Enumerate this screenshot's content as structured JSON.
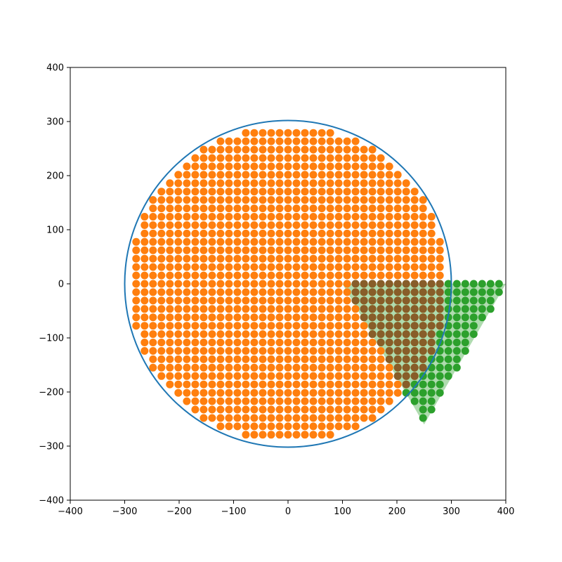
{
  "chart_data": {
    "type": "scatter",
    "title": "",
    "xlabel": "",
    "ylabel": "",
    "xlim": [
      -400,
      400
    ],
    "ylim": [
      -400,
      400
    ],
    "grid": false,
    "xticks": [
      -400,
      -300,
      -200,
      -100,
      0,
      100,
      200,
      300,
      400
    ],
    "yticks": [
      -400,
      -300,
      -200,
      -100,
      0,
      100,
      200,
      300,
      400
    ],
    "xtick_labels": [
      "−400",
      "−300",
      "−200",
      "−100",
      "0",
      "100",
      "200",
      "300",
      "400"
    ],
    "ytick_labels": [
      "−400",
      "−300",
      "−200",
      "−100",
      "0",
      "100",
      "200",
      "300",
      "400"
    ],
    "grid_step": 15.5,
    "circle": {
      "center": [
        0,
        0
      ],
      "radius": 300,
      "color": "#1f77b4"
    },
    "triangle": {
      "vertices": [
        [
          100,
          0
        ],
        [
          400,
          0
        ],
        [
          250,
          -260
        ]
      ],
      "fill_color": "#2ca02c",
      "fill_opacity": 0.38
    },
    "series": [
      {
        "role": "points inside circle",
        "color": "#ff7f0e",
        "x_range": [
          -285,
          290
        ],
        "y_range": [
          -285,
          290
        ]
      },
      {
        "role": "points inside triangle",
        "color": "#2ca02c",
        "x_range": [
          115,
          385
        ],
        "y_range": [
          -245,
          0
        ]
      },
      {
        "role": "points inside both",
        "color": "#d62728",
        "x_range": [
          115,
          290
        ],
        "y_range": [
          -200,
          0
        ]
      }
    ]
  }
}
